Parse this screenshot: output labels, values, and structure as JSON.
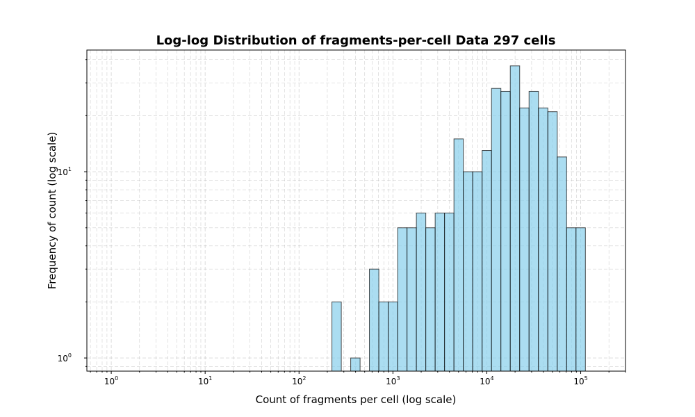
{
  "chart_data": {
    "type": "bar",
    "title": "Log-log Distribution of fragments-per-cell Data 297 cells",
    "xlabel": "Count of fragments per cell (log scale)",
    "ylabel": "Frequency of count (log scale)",
    "x_scale": "log",
    "y_scale": "log",
    "xlim": [
      0.55,
      300000
    ],
    "ylim": [
      0.85,
      45
    ],
    "x_ticks": [
      {
        "base": "10",
        "exp": "0",
        "value": 1
      },
      {
        "base": "10",
        "exp": "1",
        "value": 10
      },
      {
        "base": "10",
        "exp": "2",
        "value": 100
      },
      {
        "base": "10",
        "exp": "3",
        "value": 1000
      },
      {
        "base": "10",
        "exp": "4",
        "value": 10000
      },
      {
        "base": "10",
        "exp": "5",
        "value": 100000
      }
    ],
    "y_ticks": [
      {
        "base": "10",
        "exp": "0",
        "value": 1
      },
      {
        "base": "10",
        "exp": "1",
        "value": 10
      }
    ],
    "grid": true,
    "bar_color": "#87ceeb",
    "edge_color": "#000000",
    "bins": [
      {
        "x0": 224,
        "x1": 282,
        "count": 2
      },
      {
        "x0": 355,
        "x1": 447,
        "count": 1
      },
      {
        "x0": 562,
        "x1": 708,
        "count": 3
      },
      {
        "x0": 708,
        "x1": 891,
        "count": 2
      },
      {
        "x0": 891,
        "x1": 1122,
        "count": 2
      },
      {
        "x0": 1122,
        "x1": 1413,
        "count": 5
      },
      {
        "x0": 1413,
        "x1": 1778,
        "count": 5
      },
      {
        "x0": 1778,
        "x1": 2239,
        "count": 6
      },
      {
        "x0": 2239,
        "x1": 2818,
        "count": 5
      },
      {
        "x0": 2818,
        "x1": 3548,
        "count": 6
      },
      {
        "x0": 3548,
        "x1": 4467,
        "count": 6
      },
      {
        "x0": 4467,
        "x1": 5623,
        "count": 15
      },
      {
        "x0": 5623,
        "x1": 7079,
        "count": 10
      },
      {
        "x0": 7079,
        "x1": 8913,
        "count": 10
      },
      {
        "x0": 8913,
        "x1": 11220,
        "count": 13
      },
      {
        "x0": 11220,
        "x1": 14125,
        "count": 28
      },
      {
        "x0": 14125,
        "x1": 17783,
        "count": 27
      },
      {
        "x0": 17783,
        "x1": 22387,
        "count": 37
      },
      {
        "x0": 22387,
        "x1": 28184,
        "count": 22
      },
      {
        "x0": 28184,
        "x1": 35481,
        "count": 27
      },
      {
        "x0": 35481,
        "x1": 44668,
        "count": 22
      },
      {
        "x0": 44668,
        "x1": 56234,
        "count": 21
      },
      {
        "x0": 56234,
        "x1": 70795,
        "count": 12
      },
      {
        "x0": 70795,
        "x1": 89125,
        "count": 5
      },
      {
        "x0": 89125,
        "x1": 112202,
        "count": 5
      }
    ]
  }
}
